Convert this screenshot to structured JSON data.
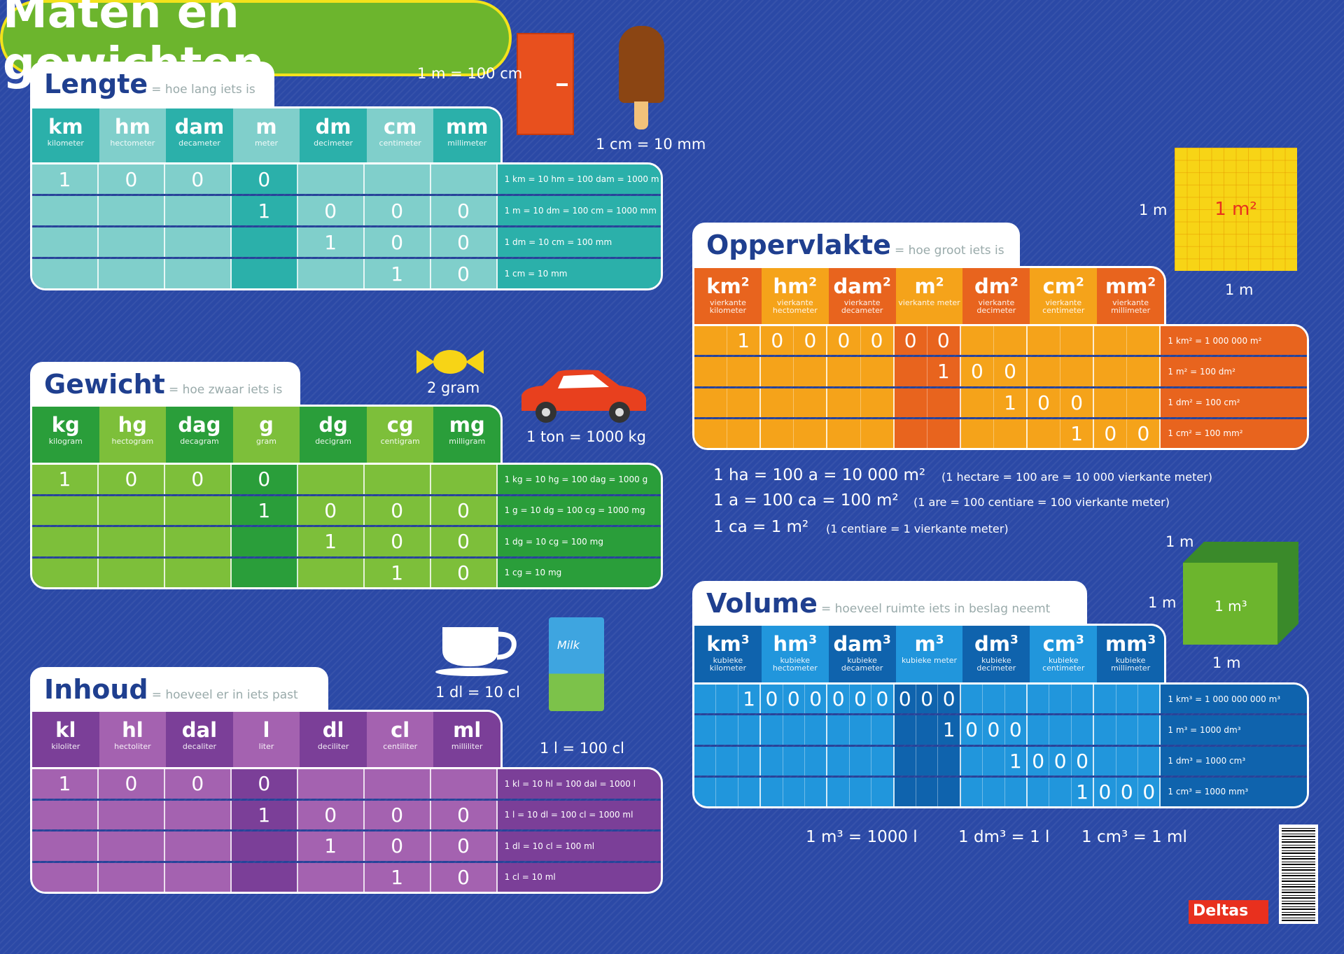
{
  "title": "Maten en gewichten",
  "sections": {
    "lengte": {
      "title": "Lengte",
      "subtitle": "= hoe lang iets is",
      "units": [
        {
          "a": "km",
          "p": "",
          "n": "kilometer"
        },
        {
          "a": "hm",
          "p": "",
          "n": "hectometer"
        },
        {
          "a": "dam",
          "p": "",
          "n": "decameter"
        },
        {
          "a": "m",
          "p": "",
          "n": "meter"
        },
        {
          "a": "dm",
          "p": "",
          "n": "decimeter"
        },
        {
          "a": "cm",
          "p": "",
          "n": "centimeter"
        },
        {
          "a": "mm",
          "p": "",
          "n": "millimeter"
        }
      ],
      "rows": [
        {
          "d": [
            "1",
            "0",
            "0",
            "0",
            "",
            "",
            ""
          ],
          "eq": "1 km = 10 hm = 100 dam = 1000 m"
        },
        {
          "d": [
            "",
            "",
            "",
            "1",
            "0",
            "0",
            "0"
          ],
          "eq": "1 m = 10 dm = 100 cm = 1000 mm"
        },
        {
          "d": [
            "",
            "",
            "",
            "",
            "1",
            "0",
            "0"
          ],
          "eq": "1 dm = 10 cm = 100 mm"
        },
        {
          "d": [
            "",
            "",
            "",
            "",
            "",
            "1",
            "0"
          ],
          "eq": "1 cm = 10 mm"
        }
      ]
    },
    "gewicht": {
      "title": "Gewicht",
      "subtitle": "= hoe zwaar iets is",
      "units": [
        {
          "a": "kg",
          "p": "",
          "n": "kilogram"
        },
        {
          "a": "hg",
          "p": "",
          "n": "hectogram"
        },
        {
          "a": "dag",
          "p": "",
          "n": "decagram"
        },
        {
          "a": "g",
          "p": "",
          "n": "gram"
        },
        {
          "a": "dg",
          "p": "",
          "n": "decigram"
        },
        {
          "a": "cg",
          "p": "",
          "n": "centigram"
        },
        {
          "a": "mg",
          "p": "",
          "n": "milligram"
        }
      ],
      "rows": [
        {
          "d": [
            "1",
            "0",
            "0",
            "0",
            "",
            "",
            ""
          ],
          "eq": "1 kg = 10 hg = 100 dag = 1000 g"
        },
        {
          "d": [
            "",
            "",
            "",
            "1",
            "0",
            "0",
            "0"
          ],
          "eq": "1 g = 10 dg = 100 cg = 1000 mg"
        },
        {
          "d": [
            "",
            "",
            "",
            "",
            "1",
            "0",
            "0"
          ],
          "eq": "1 dg = 10 cg = 100 mg"
        },
        {
          "d": [
            "",
            "",
            "",
            "",
            "",
            "1",
            "0"
          ],
          "eq": "1 cg = 10 mg"
        }
      ]
    },
    "inhoud": {
      "title": "Inhoud",
      "subtitle": "= hoeveel er in iets past",
      "units": [
        {
          "a": "kl",
          "p": "",
          "n": "kiloliter"
        },
        {
          "a": "hl",
          "p": "",
          "n": "hectoliter"
        },
        {
          "a": "dal",
          "p": "",
          "n": "decaliter"
        },
        {
          "a": "l",
          "p": "",
          "n": "liter"
        },
        {
          "a": "dl",
          "p": "",
          "n": "deciliter"
        },
        {
          "a": "cl",
          "p": "",
          "n": "centiliter"
        },
        {
          "a": "ml",
          "p": "",
          "n": "milliliter"
        }
      ],
      "rows": [
        {
          "d": [
            "1",
            "0",
            "0",
            "0",
            "",
            "",
            ""
          ],
          "eq": "1 kl = 10 hl = 100 dal = 1000 l"
        },
        {
          "d": [
            "",
            "",
            "",
            "1",
            "0",
            "0",
            "0"
          ],
          "eq": "1 l = 10 dl = 100 cl = 1000 ml"
        },
        {
          "d": [
            "",
            "",
            "",
            "",
            "1",
            "0",
            "0"
          ],
          "eq": "1 dl = 10 cl = 100 ml"
        },
        {
          "d": [
            "",
            "",
            "",
            "",
            "",
            "1",
            "0"
          ],
          "eq": "1 cl = 10 ml"
        }
      ]
    },
    "oppervlakte": {
      "title": "Oppervlakte",
      "subtitle": "= hoe groot iets is",
      "units": [
        {
          "a": "km",
          "p": "2",
          "n": "vierkante kilometer"
        },
        {
          "a": "hm",
          "p": "2",
          "n": "vierkante hectometer"
        },
        {
          "a": "dam",
          "p": "2",
          "n": "vierkante decameter"
        },
        {
          "a": "m",
          "p": "2",
          "n": "vierkante meter"
        },
        {
          "a": "dm",
          "p": "2",
          "n": "vierkante decimeter"
        },
        {
          "a": "cm",
          "p": "2",
          "n": "vierkante centimeter"
        },
        {
          "a": "mm",
          "p": "2",
          "n": "vierkante millimeter"
        }
      ],
      "rows": [
        {
          "d": [
            "",
            "1",
            "0",
            "0",
            "0",
            "0",
            "0",
            "0",
            "",
            "",
            "",
            "",
            "",
            ""
          ],
          "eq": "1 km² = 1 000 000 m²"
        },
        {
          "d": [
            "",
            "",
            "",
            "",
            "",
            "",
            "",
            "1",
            "0",
            "0",
            "",
            "",
            "",
            ""
          ],
          "eq": "1 m² = 100 dm²"
        },
        {
          "d": [
            "",
            "",
            "",
            "",
            "",
            "",
            "",
            "",
            "",
            "1",
            "0",
            "0",
            "",
            ""
          ],
          "eq": "1 dm² = 100 cm²"
        },
        {
          "d": [
            "",
            "",
            "",
            "",
            "",
            "",
            "",
            "",
            "",
            "",
            "",
            "1",
            "0",
            "0"
          ],
          "eq": "1 cm² = 100 mm²"
        }
      ]
    },
    "volume": {
      "title": "Volume",
      "subtitle": "= hoeveel ruimte iets in beslag neemt",
      "units": [
        {
          "a": "km",
          "p": "3",
          "n": "kubieke kilometer"
        },
        {
          "a": "hm",
          "p": "3",
          "n": "kubieke hectometer"
        },
        {
          "a": "dam",
          "p": "3",
          "n": "kubieke decameter"
        },
        {
          "a": "m",
          "p": "3",
          "n": "kubieke meter"
        },
        {
          "a": "dm",
          "p": "3",
          "n": "kubieke decimeter"
        },
        {
          "a": "cm",
          "p": "3",
          "n": "kubieke centimeter"
        },
        {
          "a": "mm",
          "p": "3",
          "n": "kubieke millimeter"
        }
      ],
      "rows": [
        {
          "d": [
            "",
            "",
            "1",
            "0",
            "0",
            "0",
            "0",
            "0",
            "0",
            "0",
            "0",
            "0",
            "",
            "",
            "",
            "",
            "",
            "",
            "",
            "",
            ""
          ],
          "eq": "1 km³ = 1 000 000 000 m³"
        },
        {
          "d": [
            "",
            "",
            "",
            "",
            "",
            "",
            "",
            "",
            "",
            "",
            "",
            "1",
            "0",
            "0",
            "0",
            "",
            "",
            "",
            "",
            "",
            ""
          ],
          "eq": "1 m³ = 1000 dm³"
        },
        {
          "d": [
            "",
            "",
            "",
            "",
            "",
            "",
            "",
            "",
            "",
            "",
            "",
            "",
            "",
            "",
            "1",
            "0",
            "0",
            "0",
            "",
            "",
            ""
          ],
          "eq": "1 dm³ = 1000 cm³"
        },
        {
          "d": [
            "",
            "",
            "",
            "",
            "",
            "",
            "",
            "",
            "",
            "",
            "",
            "",
            "",
            "",
            "",
            "",
            "",
            "1",
            "0",
            "0",
            "0"
          ],
          "eq": "1 cm³ = 1000 mm³"
        }
      ]
    }
  },
  "illustrations": {
    "door": "1 m = 100 cm",
    "icecream": "1 cm = 10 mm",
    "candy": "2 gram",
    "car": "1 ton = 1000 kg",
    "cup": "1 dl = 10 cl",
    "milk": "1 l = 100 cl",
    "milk_brand": "Milk",
    "square_side": "1 m",
    "square_bottom": "1 m",
    "square_label": "1 m²",
    "cube_top": "1 m",
    "cube_side": "1 m",
    "cube_bottom": "1 m",
    "cube_label": "1 m³"
  },
  "area_facts": [
    {
      "eq": "1 ha = 100 a = 10 000 m²",
      "note": "(1 hectare = 100 are = 10 000 vierkante meter)"
    },
    {
      "eq": "1 a = 100 ca = 100 m²",
      "note": "(1 are = 100 centiare = 100 vierkante meter)"
    },
    {
      "eq": "1 ca = 1 m²",
      "note": "(1 centiare = 1 vierkante meter)"
    }
  ],
  "volume_facts": [
    "1 m³ = 1000 l",
    "1 dm³ = 1 l",
    "1 cm³ = 1 ml"
  ],
  "brand": "Deltas",
  "colors": {
    "background": "#2b49a6",
    "teal": "#2bb0aa",
    "green": "#2a9e3a",
    "purple": "#7b3f98",
    "orange": "#e8641e",
    "blue": "#1477c4",
    "title": "#6cb52d"
  }
}
